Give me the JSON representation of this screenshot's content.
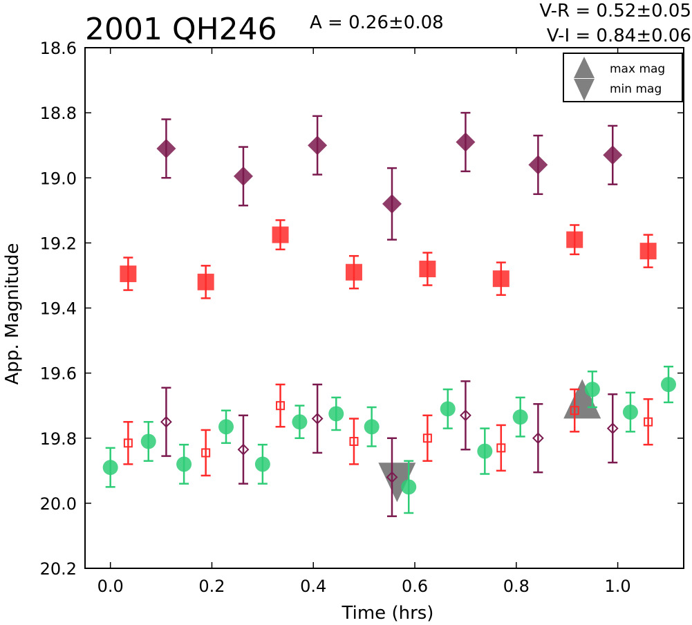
{
  "chart_data": {
    "type": "scatter",
    "title": "2001 QH246",
    "annotations": {
      "amplitude": "A  = 0.26±0.08",
      "v_minus_r": "V-R = 0.52±0.05",
      "v_minus_i": "V-I  = 0.84±0.06"
    },
    "xlabel": "Time (hrs)",
    "ylabel": "App. Magnitude",
    "xlim": [
      -0.05,
      1.13
    ],
    "ylim": [
      18.6,
      20.2
    ],
    "y_inverted": true,
    "grid": false,
    "x_ticks": [
      "0.0",
      "0.2",
      "0.4",
      "0.6",
      "0.8",
      "1.0"
    ],
    "y_ticks": [
      "18.6",
      "18.8",
      "19.0",
      "19.2",
      "19.4",
      "19.6",
      "19.8",
      "20.0",
      "20.2"
    ],
    "legend": {
      "placement": "top-right",
      "entries": [
        "max mag",
        "min mag"
      ]
    },
    "series": [
      {
        "marker": "filled-diamond",
        "color": "#7b1a4e",
        "points": [
          {
            "x": 0.11,
            "y": 18.91,
            "err": 0.09
          },
          {
            "x": 0.262,
            "y": 18.995,
            "err": 0.09
          },
          {
            "x": 0.408,
            "y": 18.9,
            "err": 0.09
          },
          {
            "x": 0.555,
            "y": 19.08,
            "err": 0.11
          },
          {
            "x": 0.7,
            "y": 18.89,
            "err": 0.09
          },
          {
            "x": 0.843,
            "y": 18.96,
            "err": 0.09
          },
          {
            "x": 0.99,
            "y": 18.93,
            "err": 0.09
          }
        ]
      },
      {
        "marker": "filled-square",
        "color": "#ff2a2a",
        "points": [
          {
            "x": 0.035,
            "y": 19.295,
            "err": 0.05
          },
          {
            "x": 0.188,
            "y": 19.32,
            "err": 0.05
          },
          {
            "x": 0.335,
            "y": 19.175,
            "err": 0.045
          },
          {
            "x": 0.48,
            "y": 19.29,
            "err": 0.05
          },
          {
            "x": 0.625,
            "y": 19.28,
            "err": 0.05
          },
          {
            "x": 0.77,
            "y": 19.31,
            "err": 0.05
          },
          {
            "x": 0.915,
            "y": 19.19,
            "err": 0.045
          },
          {
            "x": 1.06,
            "y": 19.225,
            "err": 0.05
          }
        ]
      },
      {
        "marker": "filled-circle",
        "color": "#2ecc77",
        "points": [
          {
            "x": 0.0,
            "y": 19.89,
            "err": 0.06
          },
          {
            "x": 0.075,
            "y": 19.81,
            "err": 0.06
          },
          {
            "x": 0.145,
            "y": 19.88,
            "err": 0.06
          },
          {
            "x": 0.228,
            "y": 19.765,
            "err": 0.05
          },
          {
            "x": 0.3,
            "y": 19.88,
            "err": 0.06
          },
          {
            "x": 0.373,
            "y": 19.75,
            "err": 0.05
          },
          {
            "x": 0.445,
            "y": 19.725,
            "err": 0.05
          },
          {
            "x": 0.515,
            "y": 19.765,
            "err": 0.06
          },
          {
            "x": 0.588,
            "y": 19.95,
            "err": 0.08
          },
          {
            "x": 0.665,
            "y": 19.71,
            "err": 0.06
          },
          {
            "x": 0.738,
            "y": 19.84,
            "err": 0.07
          },
          {
            "x": 0.808,
            "y": 19.735,
            "err": 0.06
          },
          {
            "x": 0.95,
            "y": 19.65,
            "err": 0.055
          },
          {
            "x": 1.025,
            "y": 19.72,
            "err": 0.06
          },
          {
            "x": 1.1,
            "y": 19.635,
            "err": 0.055
          }
        ]
      },
      {
        "marker": "open-square",
        "color": "#ff2a2a",
        "points": [
          {
            "x": 0.035,
            "y": 19.815,
            "err": 0.065
          },
          {
            "x": 0.188,
            "y": 19.845,
            "err": 0.07
          },
          {
            "x": 0.335,
            "y": 19.7,
            "err": 0.065
          },
          {
            "x": 0.48,
            "y": 19.81,
            "err": 0.07
          },
          {
            "x": 0.625,
            "y": 19.8,
            "err": 0.07
          },
          {
            "x": 0.77,
            "y": 19.83,
            "err": 0.07
          },
          {
            "x": 0.915,
            "y": 19.715,
            "err": 0.065
          },
          {
            "x": 1.06,
            "y": 19.75,
            "err": 0.07
          }
        ]
      },
      {
        "marker": "open-diamond",
        "color": "#7b1a4e",
        "points": [
          {
            "x": 0.11,
            "y": 19.75,
            "err": 0.105
          },
          {
            "x": 0.262,
            "y": 19.835,
            "err": 0.105
          },
          {
            "x": 0.408,
            "y": 19.74,
            "err": 0.105
          },
          {
            "x": 0.555,
            "y": 19.92,
            "err": 0.12
          },
          {
            "x": 0.7,
            "y": 19.73,
            "err": 0.105
          },
          {
            "x": 0.843,
            "y": 19.8,
            "err": 0.105
          },
          {
            "x": 0.99,
            "y": 19.77,
            "err": 0.105
          }
        ]
      }
    ],
    "extrema": {
      "color": "#808080",
      "max_mag": {
        "x": 0.93,
        "y": 19.695
      },
      "min_mag": {
        "x": 0.565,
        "y": 19.92
      }
    }
  }
}
